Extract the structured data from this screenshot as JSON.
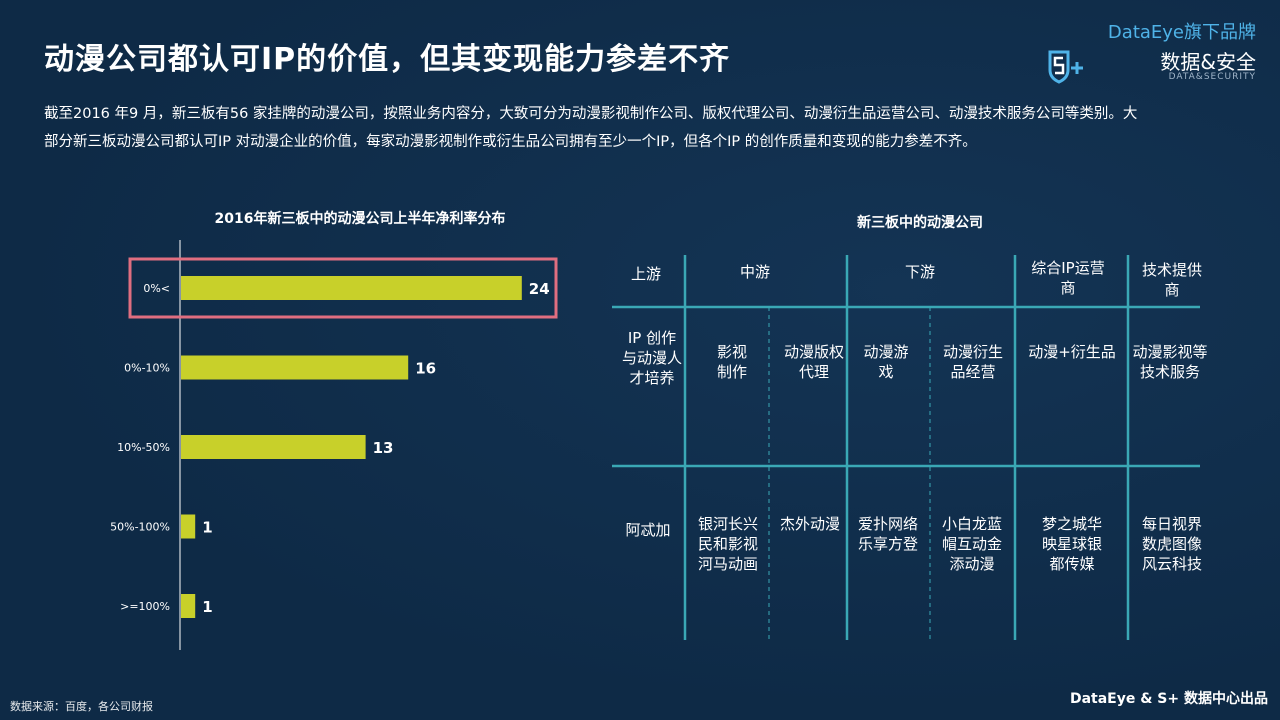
{
  "title": "动漫公司都认可IP的价值，但其变现能力参差不齐",
  "brand": {
    "top": "DataEye旗下品牌",
    "main": "数据&安全",
    "sub": "DATA&SECURITY",
    "logo_icon": "s-plus-shield-icon"
  },
  "intro": "截至2016 年9 月，新三板有56 家挂牌的动漫公司，按照业务内容分，大致可分为动漫影视制作公司、版权代理公司、动漫衍生品运营公司、动漫技术服务公司等类别。大部分新三板动漫公司都认可IP 对动漫企业的价值，每家动漫影视制作或衍生品公司拥有至少一个IP，但各个IP 的创作质量和变现的能力参差不齐。",
  "chart_data": {
    "type": "bar",
    "orientation": "horizontal",
    "title": "2016年新三板中的动漫公司上半年净利率分布",
    "categories": [
      "0%<",
      "0%-10%",
      "10%-50%",
      "50%-100%",
      ">=100%"
    ],
    "values": [
      24,
      16,
      13,
      1,
      1
    ],
    "highlight_index": 0,
    "bar_color": "#c8d02a",
    "highlight_color": "#e06e80"
  },
  "table": {
    "title": "新三板中的动漫公司",
    "line_color": "#3aa8b5",
    "headers": [
      "上游",
      "中游",
      "下游",
      "综合IP运营商",
      "技术提供商"
    ],
    "business": [
      "IP 创作与动漫人才培养",
      "影视制作",
      "动漫版权代理",
      "动漫游戏",
      "动漫衍生品经营",
      "动漫+衍生品",
      "动漫影视等技术服务"
    ],
    "companies": [
      "阿忒加",
      "银河长兴民和影视河马动画",
      "杰外动漫",
      "爱扑网络乐享方登",
      "小白龙蓝帽互动金添动漫",
      "梦之城华映星球银都传媒",
      "每日视界数虎图像风云科技"
    ]
  },
  "footer": {
    "source": "数据来源：百度，各公司财报",
    "credit": "DataEye & S+ 数据中心出品"
  }
}
